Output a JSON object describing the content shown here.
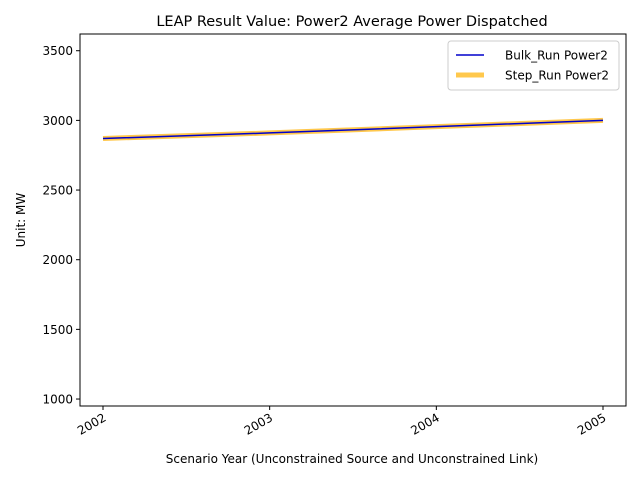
{
  "chart_data": {
    "type": "line",
    "title": "LEAP Result Value: Power2 Average Power Dispatched",
    "xlabel": "Scenario Year (Unconstrained Source and Unconstrained Link)",
    "ylabel": "Unit: MW",
    "x": [
      2002,
      2003,
      2004,
      2005
    ],
    "xticks": [
      "2002",
      "2003",
      "2004",
      "2005"
    ],
    "yticks": [
      1000,
      1500,
      2000,
      2500,
      3000,
      3500
    ],
    "ylim": [
      950,
      3620
    ],
    "grid": false,
    "legend_position": "top-right",
    "series": [
      {
        "name": "Bulk_Run Power2",
        "color": "#0000cc",
        "values": [
          2870,
          2910,
          2955,
          3000
        ]
      },
      {
        "name": "Step_Run Power2",
        "color": "#ffb000",
        "values": [
          2870,
          2910,
          2955,
          3000
        ]
      }
    ]
  }
}
